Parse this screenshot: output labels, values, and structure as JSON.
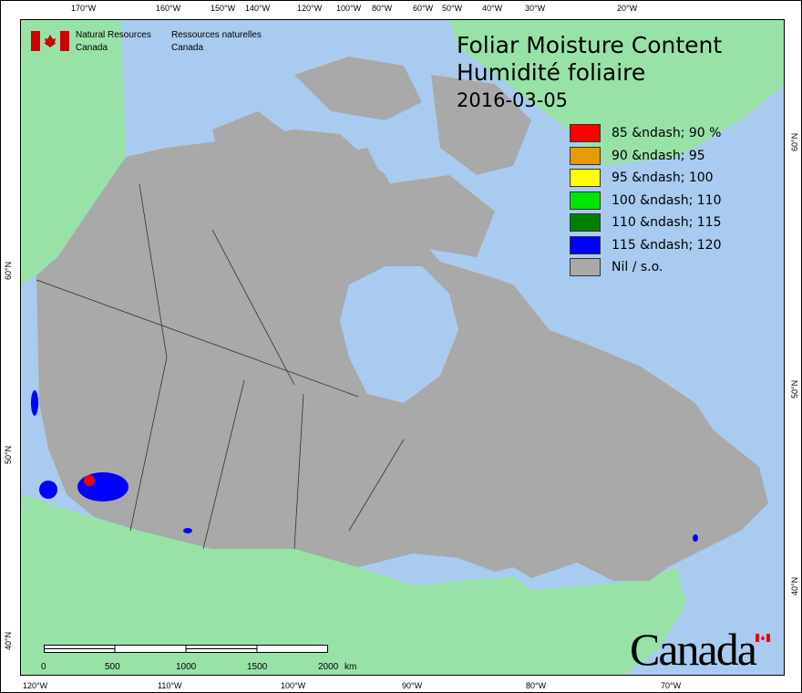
{
  "header": {
    "org_en_1": "Natural Resources",
    "org_en_2": "Canada",
    "org_fr_1": "Ressources naturelles",
    "org_fr_2": "Canada"
  },
  "title": {
    "en": "Foliar Moisture Content",
    "fr": "Humidité foliaire",
    "date": "2016-03-05"
  },
  "legend": [
    {
      "label": "85 &ndash; 90 %",
      "color": "#ff0000"
    },
    {
      "label": "90 &ndash; 95",
      "color": "#e69b00"
    },
    {
      "label": "95 &ndash; 100",
      "color": "#ffff00"
    },
    {
      "label": "100 &ndash; 110",
      "color": "#00e600"
    },
    {
      "label": "110 &ndash; 115",
      "color": "#008000"
    },
    {
      "label": "115 &ndash; 120",
      "color": "#0000ff"
    },
    {
      "label": "Nil / s.o.",
      "color": "#a9a9a9"
    }
  ],
  "top_ticks": [
    "170°W",
    "160°W",
    "150°W",
    "140°W",
    "120°W",
    "100°W",
    "80°W",
    "60°W",
    "50°W",
    "40°W",
    "30°W",
    "20°W"
  ],
  "bottom_ticks": [
    "120°W",
    "110°W",
    "100°W",
    "90°W",
    "80°W",
    "70°W"
  ],
  "left_ticks": [
    "60°N",
    "50°N",
    "40°N"
  ],
  "right_ticks": [
    "60°N",
    "50°N",
    "40°N"
  ],
  "scale": {
    "labels": [
      "0",
      "500",
      "1000",
      "1500",
      "2000"
    ],
    "unit": "km"
  },
  "wordmark": "Canada",
  "colors": {
    "water": "#a9cbf0",
    "land_other": "#98e2a8",
    "canada": "#a9a9a9"
  }
}
